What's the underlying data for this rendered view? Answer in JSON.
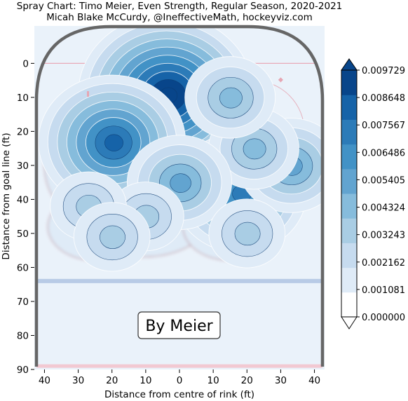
{
  "chart_data": {
    "type": "heatmap",
    "title_line1": "Spray Chart: Timo Meier, Even Strength, Regular Season, 2020-2021",
    "title_line2": "Micah Blake McCurdy, @IneffectiveMath, hockeyviz.com",
    "xlabel": "Distance from centre of rink (ft)",
    "ylabel": "Distance from goal line (ft)",
    "xlim": [
      43,
      -43
    ],
    "ylim": [
      90,
      -11
    ],
    "x_ticks": [
      "40",
      "30",
      "20",
      "10",
      "0",
      "10",
      "20",
      "30",
      "40"
    ],
    "x_tick_values": [
      -40,
      -30,
      -20,
      -10,
      0,
      10,
      20,
      30,
      40
    ],
    "y_ticks": [
      "0",
      "10",
      "20",
      "30",
      "40",
      "50",
      "60",
      "70",
      "80",
      "90"
    ],
    "y_tick_values": [
      0,
      10,
      20,
      30,
      40,
      50,
      60,
      70,
      80,
      90
    ],
    "annotation": "By Meier",
    "colorbar": {
      "labels": [
        "0.009729",
        "0.008648",
        "0.007567",
        "0.006486",
        "0.005405",
        "0.004324",
        "0.003243",
        "0.002162",
        "0.001081",
        "0.000000"
      ],
      "values": [
        0.009729,
        0.008648,
        0.007567,
        0.006486,
        0.005405,
        0.004324,
        0.003243,
        0.002162,
        0.001081,
        0.0
      ],
      "colors": [
        "#ffffff",
        "#dfebf7",
        "#c6dbef",
        "#a9cde4",
        "#86bcdc",
        "#62a4d0",
        "#4292c6",
        "#2c7bb8",
        "#1663a8",
        "#08458a"
      ]
    },
    "hotspots": [
      {
        "x": 4,
        "y": 9,
        "level": 10
      },
      {
        "x": 20,
        "y": 23,
        "level": 8
      },
      {
        "x": -18,
        "y": 38,
        "level": 7
      },
      {
        "x": -33,
        "y": 30,
        "level": 5
      },
      {
        "x": -22,
        "y": 25,
        "level": 4
      },
      {
        "x": 0,
        "y": 35,
        "level": 5
      },
      {
        "x": -15,
        "y": 10,
        "level": 4
      },
      {
        "x": 10,
        "y": 45,
        "level": 3
      },
      {
        "x": 27,
        "y": 42,
        "level": 3
      },
      {
        "x": 20,
        "y": 51,
        "level": 3
      },
      {
        "x": -20,
        "y": 50,
        "level": 3
      }
    ],
    "rink": {
      "goal_line_y": 0,
      "blue_line_y": 64,
      "red_line_y": 89,
      "faceoff_circles": [
        {
          "x": -22,
          "y": 20
        },
        {
          "x": 22,
          "y": 20
        }
      ],
      "faceoff_circle_radius": 15
    }
  }
}
